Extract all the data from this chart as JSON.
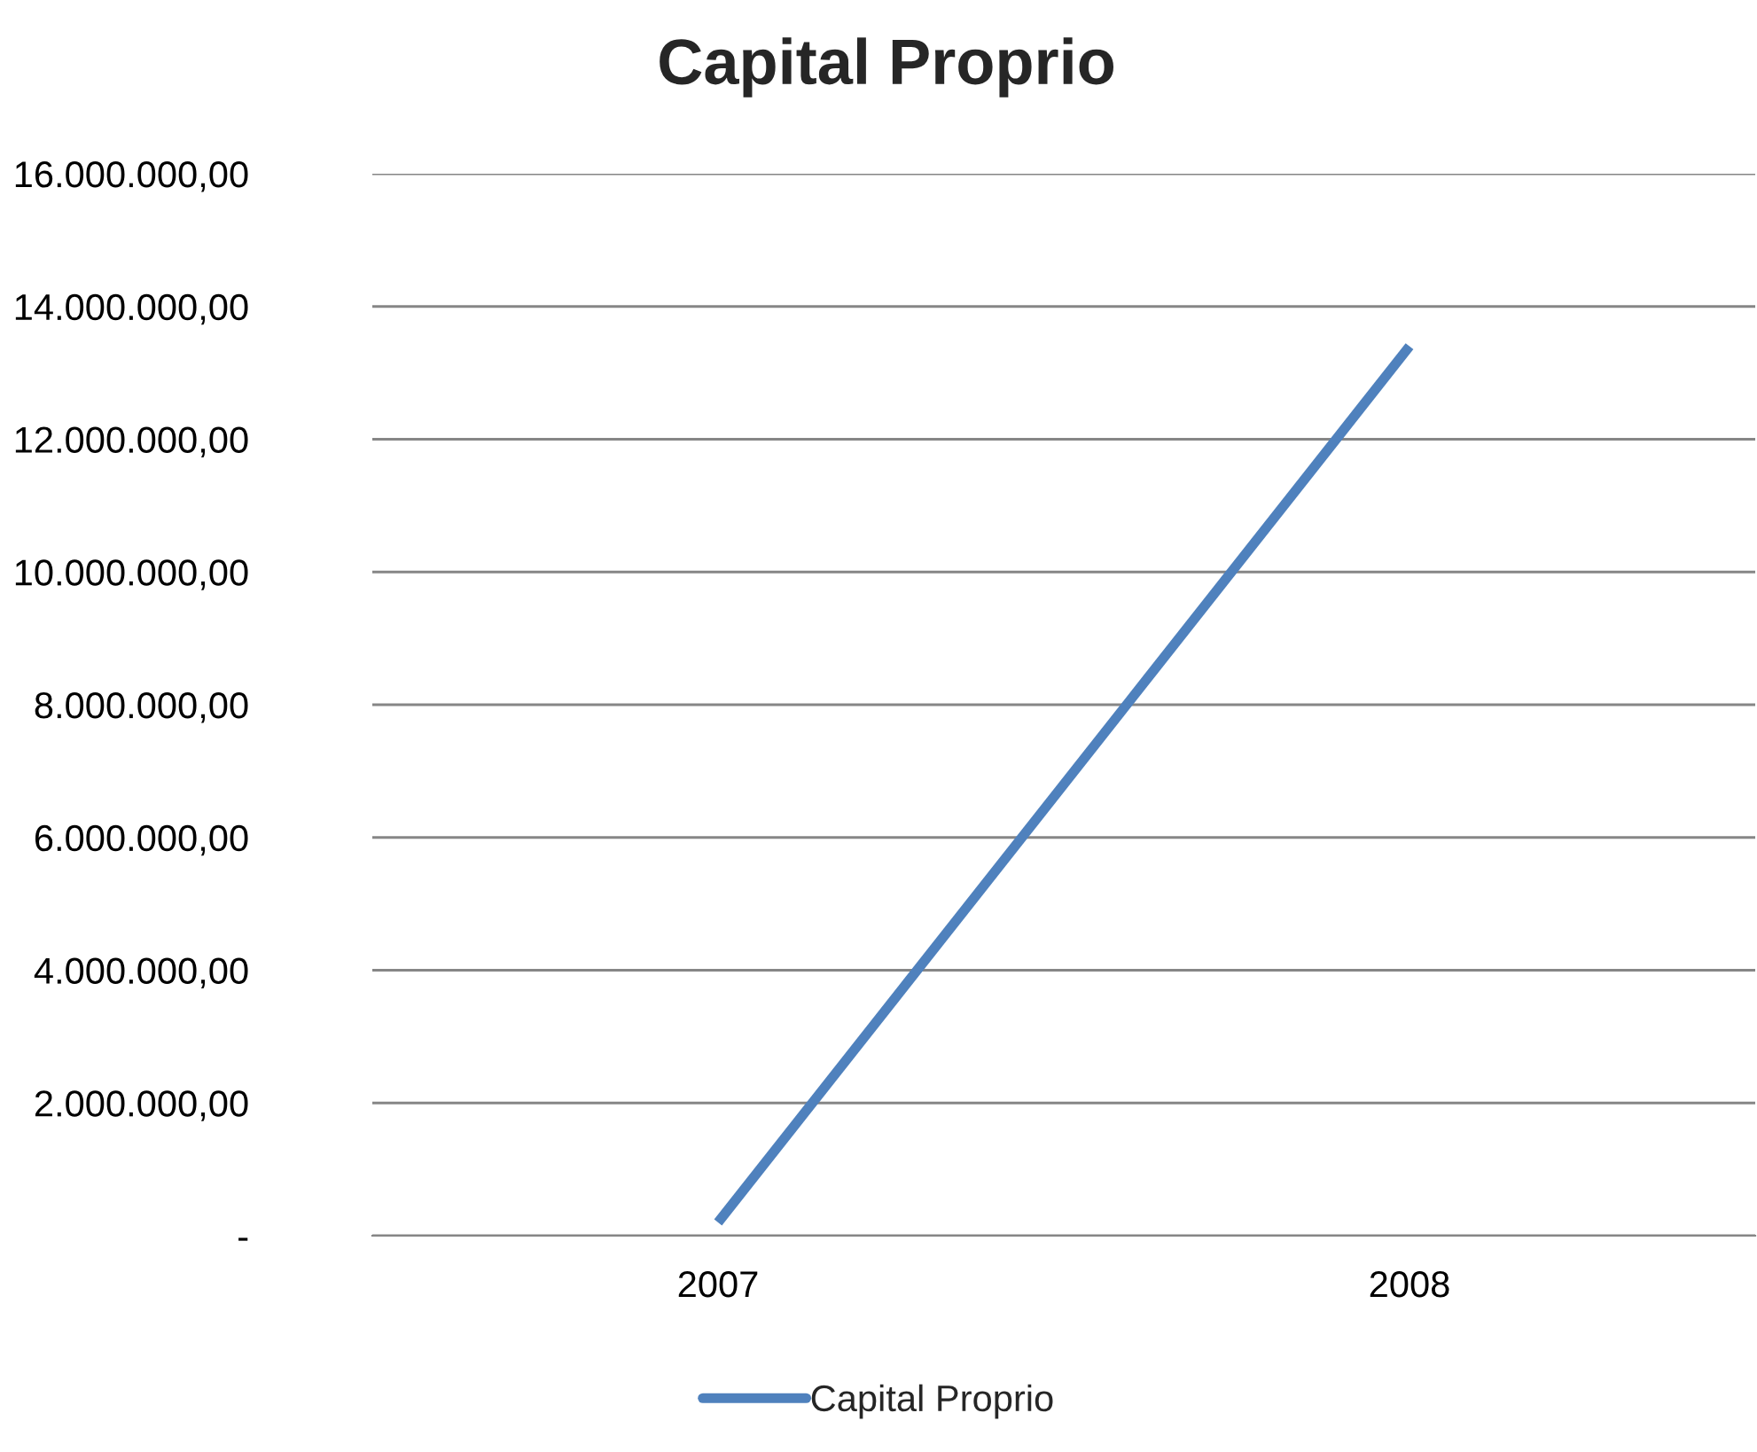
{
  "chart_data": {
    "type": "line",
    "title": "Capital Proprio",
    "categories": [
      "2007",
      "2008"
    ],
    "series": [
      {
        "name": "Capital Proprio",
        "color": "#4f81bd",
        "values": [
          200000,
          13400000
        ]
      }
    ],
    "ylim": [
      0,
      16000000
    ],
    "yticks": [
      {
        "value": 0,
        "label": "-"
      },
      {
        "value": 2000000,
        "label": "2.000.000,00"
      },
      {
        "value": 4000000,
        "label": "4.000.000,00"
      },
      {
        "value": 6000000,
        "label": "6.000.000,00"
      },
      {
        "value": 8000000,
        "label": "8.000.000,00"
      },
      {
        "value": 10000000,
        "label": "10.000.000,00"
      },
      {
        "value": 12000000,
        "label": "12.000.000,00"
      },
      {
        "value": 14000000,
        "label": "14.000.000,00"
      },
      {
        "value": 16000000,
        "label": "16.000.000,00"
      }
    ],
    "grid": "y",
    "legend": "bottom",
    "marker": "none",
    "line_style": "solid"
  }
}
